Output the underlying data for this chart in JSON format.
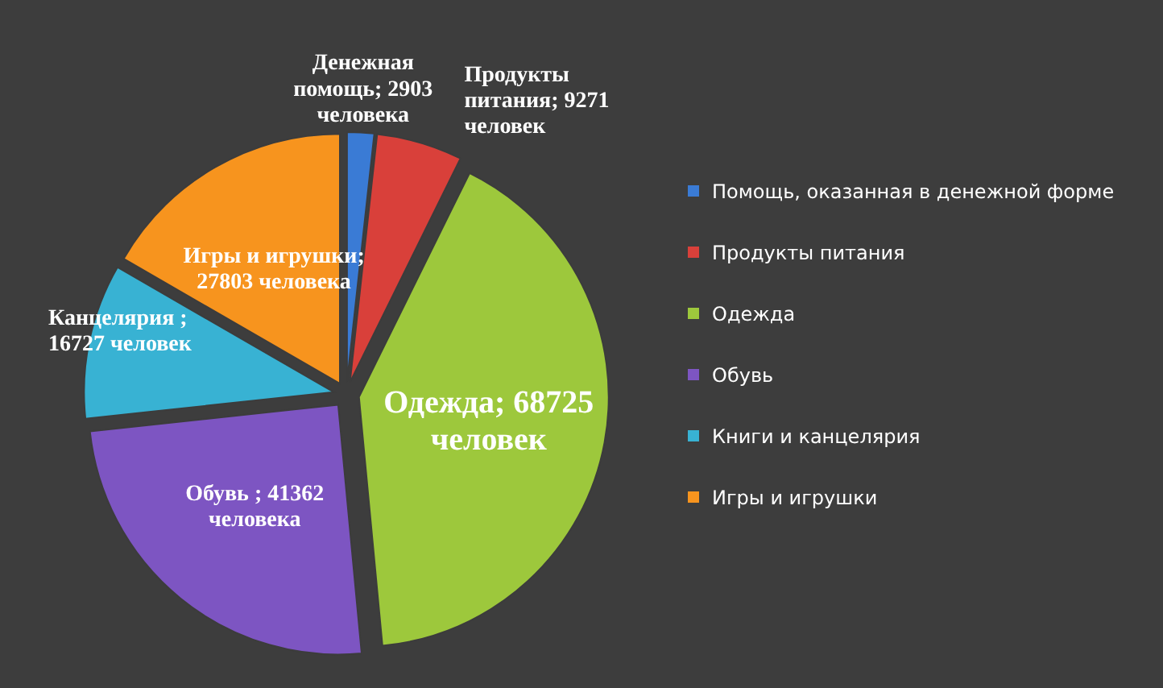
{
  "chart_data": {
    "type": "pie",
    "categories": [
      "Помощь, оказанная в денежной форме",
      "Продукты питания",
      "Одежда",
      "Обувь",
      "Книги и канцелярия",
      "Игры и игрушки"
    ],
    "values": [
      2903,
      9271,
      68725,
      41362,
      16727,
      27803
    ],
    "colors": [
      "#3a7bd5",
      "#d9403a",
      "#9dc83c",
      "#7d55c2",
      "#38b2d3",
      "#f7941e"
    ],
    "value_labels": [
      "Денежная помощь; 2903 человека",
      "Продукты питания; 9271 человек",
      "Одежда; 68725 человек",
      "Обувь ; 41362 человека",
      "Канцелярия ; 16727 человек",
      "Игры и игрушки; 27803 человека"
    ],
    "legend": "right"
  }
}
